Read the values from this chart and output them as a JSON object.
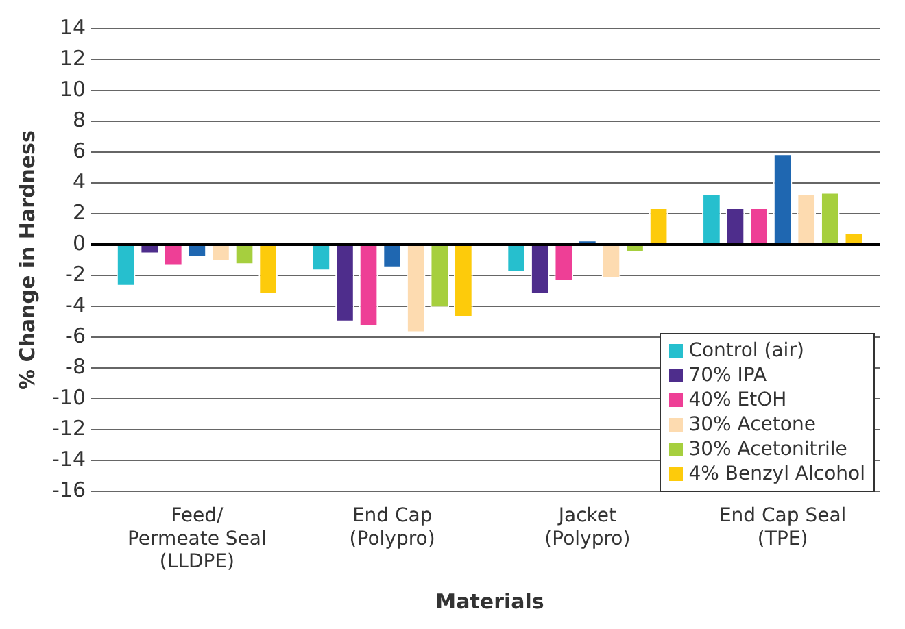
{
  "chart_data": {
    "type": "bar",
    "xlabel": "Materials",
    "ylabel": "% Change in Hardness",
    "categories": [
      "Feed/\nPermeate Seal\n(LLDPE)",
      "End Cap\n(Polypro)",
      "Jacket\n(Polypro)",
      "End Cap Seal\n(TPE)"
    ],
    "series": [
      {
        "name": "Control (air)",
        "color": "#26bfce",
        "values": [
          -2.7,
          -1.7,
          -1.8,
          3.3
        ]
      },
      {
        "name": "70% IPA",
        "color": "#4e2d8c",
        "values": [
          -0.6,
          -5.0,
          -3.2,
          2.4
        ]
      },
      {
        "name": "40% EtOH",
        "color": "#ee3f96",
        "values": [
          -1.4,
          -5.3,
          -2.4,
          2.4
        ]
      },
      {
        "color": "#1f67b1",
        "values": [
          -0.8,
          -1.5,
          0.3,
          5.9
        ]
      },
      {
        "name": "30% Acetone",
        "color": "#fddbb0",
        "values": [
          -1.1,
          -5.7,
          -2.2,
          3.3
        ]
      },
      {
        "name": "30% Acetonitrile",
        "color": "#a6cf3e",
        "values": [
          -1.3,
          -4.1,
          -0.5,
          3.4
        ]
      },
      {
        "name": "4% Benzyl Alcohol",
        "color": "#fdcb0b",
        "values": [
          -3.2,
          -4.7,
          2.4,
          0.8
        ]
      }
    ],
    "ylim": [
      -16,
      14
    ],
    "yticks": [
      -16,
      -14,
      -12,
      -10,
      -8,
      -6,
      -4,
      -2,
      0,
      2,
      4,
      6,
      8,
      10,
      12,
      14
    ],
    "grid": "y",
    "legend": "bottom right"
  }
}
